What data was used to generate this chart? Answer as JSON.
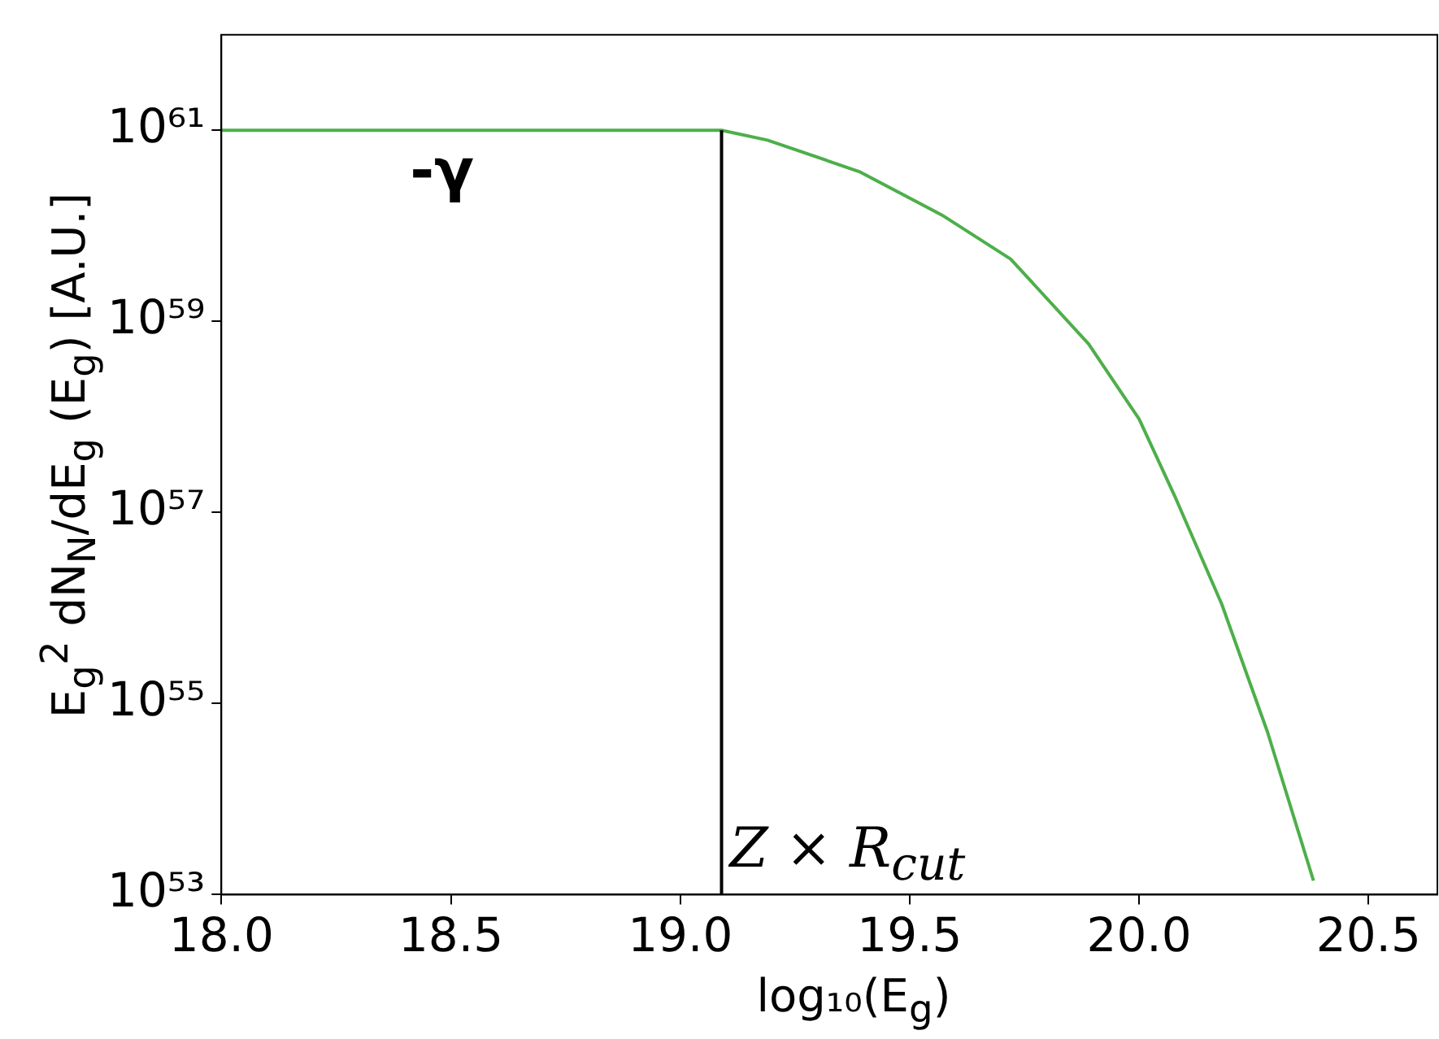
{
  "chart_data": {
    "type": "line",
    "xlabel": "log₁₀(E$_{g}$)",
    "ylabel": "E$_{g}$$^{2}$ dN$_{N}$/dE$_{g}$ (E$_{g}$) [A.U.]",
    "x": [
      18.0,
      19.09,
      19.19,
      19.39,
      19.57,
      19.72,
      19.89,
      20.0,
      20.08,
      20.18,
      20.28,
      20.38
    ],
    "series": [
      {
        "color": "#4daf4a",
        "values": [
          1e+61,
          1e+61,
          7.9e+60,
          3.7e+60,
          1.3e+60,
          4.5e+59,
          5.8e+58,
          9.5e+57,
          1.4e+57,
          1.1e+56,
          5e+54,
          1.4e+53
        ]
      }
    ],
    "log": "y",
    "xlim": [
      18.0,
      20.65
    ],
    "ylim": [
      1e+53,
      1e+62
    ],
    "xticks": [
      {
        "value": 18,
        "label": "18.0"
      },
      {
        "value": 18.5,
        "label": "18.5"
      },
      {
        "value": 19,
        "label": "19.0"
      },
      {
        "value": 19.5,
        "label": "19.5"
      },
      {
        "value": 20,
        "label": "20.0"
      },
      {
        "value": 20.5,
        "label": "20.5"
      }
    ],
    "yticks": [
      {
        "value": 1e+53,
        "label": "10⁵³"
      },
      {
        "value": 1e+55,
        "label": "10⁵⁵"
      },
      {
        "value": 1e+57,
        "label": "10⁵⁷"
      },
      {
        "value": 1e+59,
        "label": "10⁵⁹"
      },
      {
        "value": 1e+61,
        "label": "10⁶¹"
      }
    ],
    "ref_lines": [
      {
        "axis": "x",
        "value": 19.09,
        "label": "Z × R$_{cut}$",
        "color": "#000000"
      }
    ],
    "annotations": [
      "-γ"
    ],
    "grid": false,
    "legend": false,
    "marker": "none",
    "line_style": "solid"
  }
}
